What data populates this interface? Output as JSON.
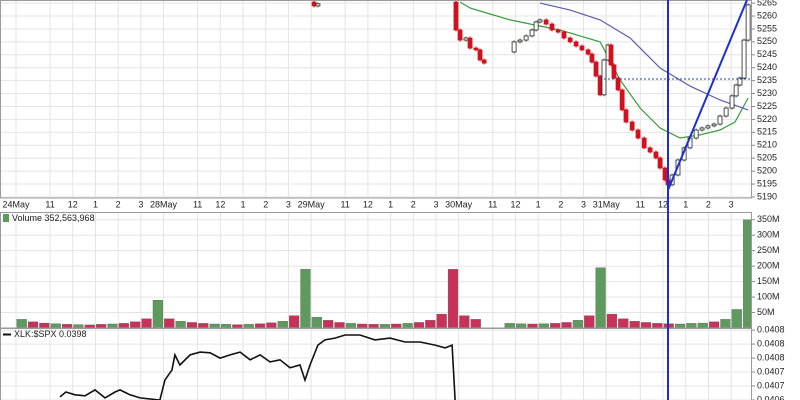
{
  "chart_data": [
    {
      "type": "candlestick",
      "xlim": [
        -0.705,
        32.42
      ],
      "xticks": [
        {
          "value": 0,
          "label": "24May"
        },
        {
          "value": 1.5,
          "label": "11"
        },
        {
          "value": 2.5,
          "label": "12"
        },
        {
          "value": 3.5,
          "label": "1"
        },
        {
          "value": 4.5,
          "label": "2"
        },
        {
          "value": 5.5,
          "label": "3"
        },
        {
          "value": 6.5,
          "label": "28May"
        },
        {
          "value": 8,
          "label": "11"
        },
        {
          "value": 9,
          "label": "12"
        },
        {
          "value": 10,
          "label": "1"
        },
        {
          "value": 11,
          "label": "2"
        },
        {
          "value": 12,
          "label": "3"
        },
        {
          "value": 13,
          "label": "29May"
        },
        {
          "value": 14.5,
          "label": "11"
        },
        {
          "value": 15.5,
          "label": "12"
        },
        {
          "value": 16.5,
          "label": "1"
        },
        {
          "value": 17.5,
          "label": "2"
        },
        {
          "value": 18.5,
          "label": "3"
        },
        {
          "value": 19.5,
          "label": "30May"
        },
        {
          "value": 21,
          "label": "11"
        },
        {
          "value": 22,
          "label": "12"
        },
        {
          "value": 23,
          "label": "1"
        },
        {
          "value": 24,
          "label": "2"
        },
        {
          "value": 25,
          "label": "3"
        },
        {
          "value": 26,
          "label": "31May"
        },
        {
          "value": 27.5,
          "label": "11"
        },
        {
          "value": 28.5,
          "label": "12"
        },
        {
          "value": 29.5,
          "label": "1"
        },
        {
          "value": 30.5,
          "label": "2"
        },
        {
          "value": 31.5,
          "label": "3"
        }
      ],
      "ylim": [
        5189.6,
        5266.2
      ],
      "yticks": [
        5190,
        5195,
        5200,
        5205,
        5210,
        5215,
        5220,
        5225,
        5230,
        5235,
        5240,
        5245,
        5250,
        5255,
        5260,
        5265
      ],
      "up_color": "#2e7d32",
      "down_color": "#d0121f",
      "x": [
        12.95,
        13.13,
        13.3,
        null,
        19.21,
        19.38,
        19.56,
        19.82,
        20.0,
        20.26,
        20.44,
        20.62,
        null,
        21.76,
        21.94,
        22.2,
        22.47,
        22.73,
        22.91,
        23.08,
        23.35,
        23.61,
        23.88,
        24.14,
        24.41,
        24.67,
        24.93,
        25.2,
        25.37,
        25.55,
        25.73,
        25.9,
        26.08,
        26.21,
        26.34,
        26.52,
        26.7,
        26.87,
        27.14,
        27.4,
        27.67,
        27.93,
        28.19,
        28.37,
        28.59,
        28.72,
        28.9,
        29.16,
        29.43,
        29.69,
        29.96,
        30.22,
        30.48,
        30.75,
        31.01,
        31.28,
        31.54,
        31.72,
        31.89,
        32.07,
        32.25
      ],
      "values": [
        5265.4,
        5263.9,
        5264.7,
        null,
        5265.4,
        5254.6,
        5250.7,
        5251.5,
        5247.6,
        5246.9,
        5243.0,
        5241.8,
        null,
        5246.1,
        5250.0,
        5250.7,
        5252.3,
        5254.6,
        5257.7,
        5258.5,
        5256.9,
        5254.6,
        5253.8,
        5251.5,
        5250.0,
        5248.4,
        5246.9,
        5245.3,
        5242.2,
        5236.8,
        5229.5,
        5243.0,
        5248.8,
        5241.1,
        5236.0,
        5231.4,
        5223.7,
        5219.0,
        5215.9,
        5212.8,
        5209.0,
        5207.4,
        5205.1,
        5201.2,
        5196.6,
        5194.7,
        5198.5,
        5204.3,
        5209.0,
        5212.8,
        5215.9,
        5216.7,
        5217.5,
        5218.2,
        5221.3,
        5224.4,
        5229.1,
        5233.3,
        5236.0,
        5250.7,
        5264.3
      ],
      "overlays": [
        {
          "color": "#3a9a3a",
          "x": [
            19.56,
            20.0,
            20.88,
            21.76,
            22.64,
            23.96,
            24.85,
            25.73,
            26.61,
            27.49,
            28.37,
            29.25,
            30.13,
            31.01,
            31.67,
            32.25
          ],
          "values": [
            5265.4,
            5263.1,
            5260.8,
            5258.5,
            5256.9,
            5254.6,
            5252.3,
            5250.0,
            5235.3,
            5224.4,
            5216.7,
            5212.8,
            5214.0,
            5215.9,
            5219.0,
            5228.3
          ]
        },
        {
          "color": "#5b5bb0",
          "x": [
            23.08,
            24.41,
            25.73,
            27.05,
            28.37,
            29.69,
            31.01,
            32.25
          ],
          "values": [
            5265.0,
            5262.3,
            5258.5,
            5251.5,
            5239.9,
            5232.9,
            5227.5,
            5223.7
          ]
        }
      ]
    },
    {
      "type": "bar",
      "label": "Volume 352,563,968",
      "ylim": [
        0,
        375
      ],
      "yticks": [
        {
          "value": 50,
          "label": "50M"
        },
        {
          "value": 100,
          "label": "100M"
        },
        {
          "value": 150,
          "label": "150M"
        },
        {
          "value": 200,
          "label": "200M"
        },
        {
          "value": 250,
          "label": "250M"
        },
        {
          "value": 300,
          "label": "300M"
        },
        {
          "value": 350,
          "label": "350M"
        }
      ],
      "x": [
        0.25,
        0.75,
        1.25,
        1.75,
        2.25,
        2.75,
        3.25,
        3.75,
        4.25,
        4.75,
        5.25,
        5.75,
        6.25,
        6.75,
        7.25,
        7.75,
        8.25,
        8.75,
        9.25,
        9.75,
        10.25,
        10.75,
        11.25,
        11.75,
        12.25,
        12.75,
        13.25,
        13.75,
        14.25,
        14.75,
        15.25,
        15.75,
        16.25,
        16.75,
        17.25,
        17.75,
        18.25,
        18.75,
        19.25,
        19.75,
        20.25,
        20.75,
        21.25,
        21.75,
        22.25,
        22.75,
        23.25,
        23.75,
        24.25,
        24.75,
        25.25,
        25.75,
        26.25,
        26.75,
        27.25,
        27.75,
        28.25,
        28.75,
        29.25,
        29.75,
        30.25,
        30.75,
        31.25,
        31.75,
        32.25
      ],
      "values": [
        28,
        20,
        16,
        14,
        12,
        11,
        10,
        12,
        13,
        15,
        20,
        30,
        90,
        30,
        22,
        18,
        15,
        13,
        12,
        11,
        12,
        14,
        17,
        22,
        40,
        190,
        35,
        25,
        18,
        15,
        13,
        12,
        12,
        13,
        15,
        18,
        25,
        45,
        190,
        40,
        28,
        null,
        null,
        15,
        14,
        13,
        14,
        15,
        18,
        25,
        40,
        195,
        45,
        30,
        22,
        18,
        15,
        14,
        13,
        15,
        16,
        20,
        28,
        60,
        350
      ],
      "colors": [
        "#5e9a5e",
        "#c8325a",
        "#c8325a",
        "#5e9a5e",
        "#c8325a",
        "#5e9a5e",
        "#c8325a",
        "#c8325a",
        "#5e9a5e",
        "#c8325a",
        "#c8325a",
        "#c8325a",
        "#5e9a5e",
        "#c8325a",
        "#5e9a5e",
        "#c8325a",
        "#c8325a",
        "#5e9a5e",
        "#5e9a5e",
        "#c8325a",
        "#5e9a5e",
        "#c8325a",
        "#c8325a",
        "#5e9a5e",
        "#c8325a",
        "#5e9a5e",
        "#5e9a5e",
        "#c8325a",
        "#c8325a",
        "#5e9a5e",
        "#c8325a",
        "#c8325a",
        "#5e9a5e",
        "#c8325a",
        "#5e9a5e",
        "#c8325a",
        "#c8325a",
        "#c8325a",
        "#c8325a",
        "#c8325a",
        "#c8325a",
        "#c8325a",
        "#c8325a",
        "#5e9a5e",
        "#5e9a5e",
        "#c8325a",
        "#5e9a5e",
        "#c8325a",
        "#c8325a",
        "#5e9a5e",
        "#c8325a",
        "#5e9a5e",
        "#c8325a",
        "#c8325a",
        "#c8325a",
        "#c8325a",
        "#c8325a",
        "#c8325a",
        "#5e9a5e",
        "#5e9a5e",
        "#5e9a5e",
        "#c8325a",
        "#5e9a5e",
        "#5e9a5e",
        "#5e9a5e"
      ]
    },
    {
      "type": "line",
      "label": "XLK:$SPX 0.0398",
      "color": "#111111",
      "ylim": [
        0.04064,
        0.040846
      ],
      "yticks": [
        {
          "value": 0.04084,
          "label": "0.0408"
        },
        0.0408,
        {
          "value": 0.04076,
          "label": "0.0408"
        },
        {
          "value": 0.04072,
          "label": "0.0407"
        },
        {
          "value": 0.04068,
          "label": "0.0407"
        },
        {
          "value": 0.04064,
          "label": "0.0406"
        }
      ],
      "x": [
        1.94,
        2.2,
        2.6,
        3.04,
        3.48,
        3.92,
        4.36,
        4.58,
        5.02,
        5.46,
        6.34,
        6.56,
        6.87,
        7.0,
        7.22,
        7.67,
        8.11,
        8.55,
        8.99,
        9.43,
        9.87,
        10.31,
        10.75,
        11.19,
        11.63,
        12.07,
        12.51,
        12.73,
        12.95,
        13.3,
        13.61,
        14.05,
        14.49,
        15.15,
        15.81,
        16.48,
        17.14,
        17.8,
        18.46,
        18.9,
        19.21,
        19.34
      ],
      "values": [
        0.040649,
        0.040663,
        0.040655,
        0.040652,
        0.040669,
        0.040646,
        0.040663,
        0.040669,
        0.040655,
        0.040646,
        0.04064,
        0.040697,
        0.040726,
        0.040769,
        0.04074,
        0.040769,
        0.040777,
        0.040775,
        0.04076,
        0.040769,
        0.040777,
        0.040755,
        0.040769,
        0.040749,
        0.040755,
        0.040732,
        0.04074,
        0.040697,
        0.04074,
        0.040797,
        0.040812,
        0.040817,
        0.040826,
        0.040826,
        0.040812,
        0.040817,
        0.040806,
        0.040806,
        0.040797,
        0.040789,
        0.040797,
        0.04064
      ]
    }
  ]
}
